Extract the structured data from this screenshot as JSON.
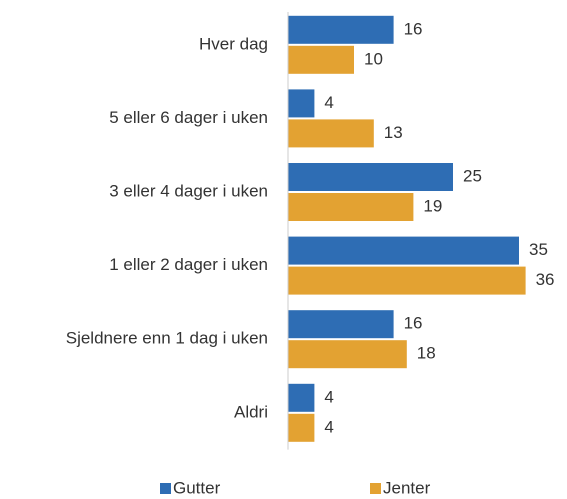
{
  "chart_data": {
    "type": "bar",
    "orientation": "horizontal",
    "categories": [
      "Hver dag",
      "5 eller 6 dager i uken",
      "3 eller 4 dager i uken",
      "1 eller 2 dager i uken",
      "Sjeldnere enn 1 dag i uken",
      "Aldri"
    ],
    "series": [
      {
        "name": "Gutter",
        "color": "#2e6db4",
        "values": [
          16,
          4,
          25,
          35,
          16,
          4
        ]
      },
      {
        "name": "Jenter",
        "color": "#e3a232",
        "values": [
          10,
          13,
          19,
          36,
          18,
          4
        ]
      }
    ],
    "legend": "bottom"
  }
}
